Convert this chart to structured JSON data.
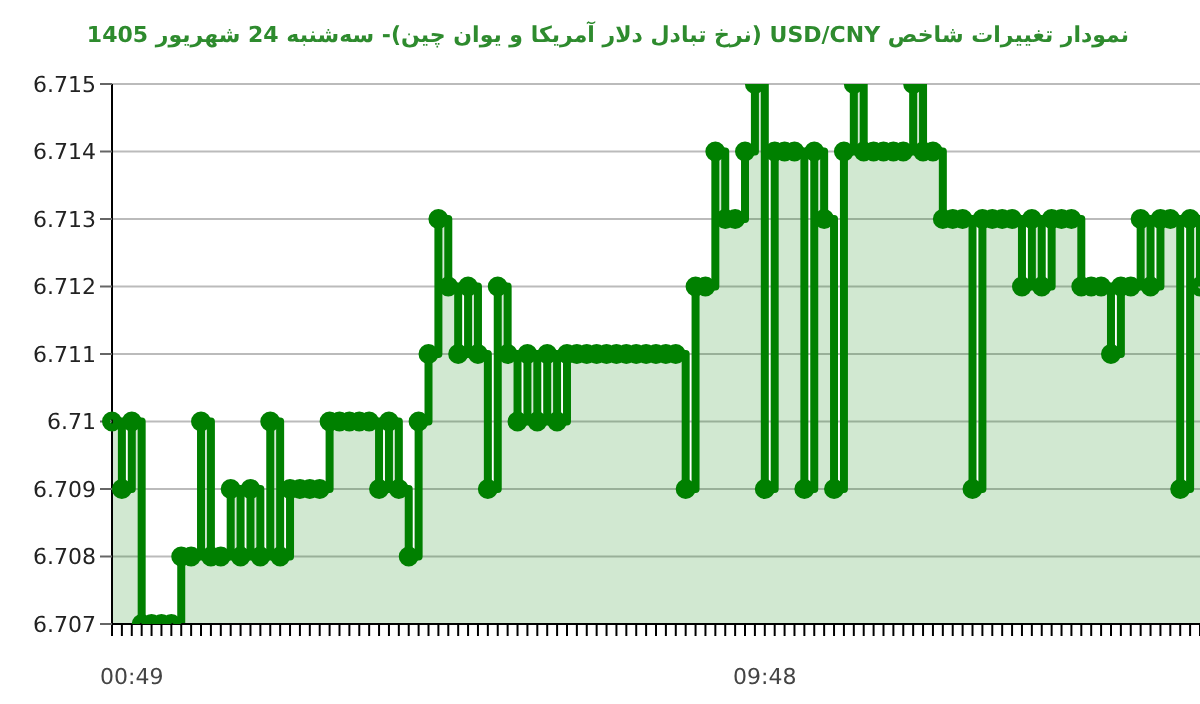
{
  "chart_data": {
    "type": "step",
    "title": "نمودار تغییرات شاخص USD/CNY (نرخ تبادل دلار آمریکا و یوان چین)- سه‌شنبه  24 شهریور 1405",
    "categories": [
      null,
      null,
      "00:49",
      null,
      null,
      null,
      null,
      null,
      null,
      null,
      null,
      null,
      null,
      null,
      null,
      null,
      null,
      null,
      null,
      null,
      null,
      null,
      null,
      null,
      null,
      null,
      null,
      null,
      null,
      null,
      null,
      null,
      null,
      null,
      null,
      null,
      null,
      null,
      null,
      null,
      null,
      null,
      null,
      null,
      null,
      null,
      null,
      null,
      null,
      null,
      null,
      null,
      null,
      null,
      null,
      null,
      null,
      null,
      null,
      null,
      null,
      null,
      null,
      null,
      null,
      null,
      "09:48",
      null,
      null,
      null,
      null,
      null,
      null,
      null,
      null,
      null,
      null,
      null,
      null,
      null,
      null,
      null,
      null,
      null,
      null,
      null,
      null,
      null,
      null,
      null,
      null,
      null,
      null,
      null,
      null,
      null,
      null,
      null,
      null,
      null,
      null,
      null,
      null,
      null,
      null,
      null,
      null,
      null,
      null,
      null,
      null
    ],
    "series": [
      {
        "color": "#008000",
        "values": [
          6.71,
          6.709,
          6.71,
          6.707,
          6.707,
          6.707,
          6.707,
          6.708,
          6.708,
          6.71,
          6.708,
          6.708,
          6.709,
          6.708,
          6.709,
          6.708,
          6.71,
          6.708,
          6.709,
          6.709,
          6.709,
          6.709,
          6.71,
          6.71,
          6.71,
          6.71,
          6.71,
          6.709,
          6.71,
          6.709,
          6.708,
          6.71,
          6.711,
          6.713,
          6.712,
          6.711,
          6.712,
          6.711,
          6.709,
          6.712,
          6.711,
          6.71,
          6.711,
          6.71,
          6.711,
          6.71,
          6.711,
          6.711,
          6.711,
          6.711,
          6.711,
          6.711,
          6.711,
          6.711,
          6.711,
          6.711,
          6.711,
          6.711,
          6.709,
          6.712,
          6.712,
          6.714,
          6.713,
          6.713,
          6.714,
          6.715,
          6.709,
          6.714,
          6.714,
          6.714,
          6.709,
          6.714,
          6.713,
          6.709,
          6.714,
          6.715,
          6.714,
          6.714,
          6.714,
          6.714,
          6.714,
          6.715,
          6.714,
          6.714,
          6.713,
          6.713,
          6.713,
          6.709,
          6.713,
          6.713,
          6.713,
          6.713,
          6.712,
          6.713,
          6.712,
          6.713,
          6.713,
          6.713,
          6.712,
          6.712,
          6.712,
          6.711,
          6.712,
          6.712,
          6.713,
          6.712,
          6.713,
          6.713,
          6.709,
          6.713,
          6.712
        ]
      }
    ],
    "ylim": [
      6.707,
      6.715
    ],
    "yticks": [
      6.707,
      6.708,
      6.709,
      6.71,
      6.711,
      6.712,
      6.713,
      6.714,
      6.715
    ],
    "grid": "y",
    "marker": "circle"
  }
}
